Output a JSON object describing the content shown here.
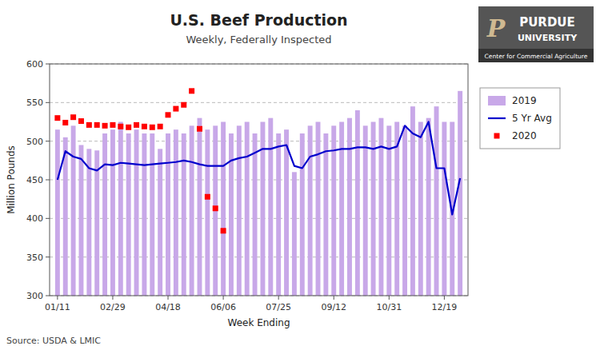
{
  "chart_data": {
    "type": "bar",
    "title": "U.S. Beef Production",
    "subtitle": "Weekly, Federally Inspected",
    "y_label": "Million Pounds",
    "x_label": "Week Ending",
    "source": "Source:  USDA & LMIC",
    "annotations": [
      "P",
      "PURDUE",
      "UNIVERSITY",
      "Center for Commercial Agriculture"
    ],
    "categories": [
      "01/11",
      null,
      null,
      null,
      null,
      null,
      null,
      "02/29",
      null,
      null,
      null,
      null,
      null,
      null,
      "04/18",
      null,
      null,
      null,
      null,
      null,
      null,
      "06/06",
      null,
      null,
      null,
      null,
      null,
      null,
      "07/25",
      null,
      null,
      null,
      null,
      null,
      null,
      "09/12",
      null,
      null,
      null,
      null,
      null,
      null,
      "10/31",
      null,
      null,
      null,
      null,
      null,
      null,
      "12/19",
      null,
      null
    ],
    "series": [
      {
        "name": "2019",
        "type": "bar",
        "color": "#C8A8E8",
        "values": [
          515,
          505,
          520,
          495,
          490,
          488,
          510,
          515,
          525,
          510,
          515,
          510,
          510,
          490,
          510,
          515,
          510,
          520,
          530,
          515,
          520,
          525,
          510,
          520,
          525,
          510,
          525,
          530,
          510,
          515,
          460,
          510,
          520,
          525,
          510,
          520,
          525,
          530,
          540,
          520,
          525,
          530,
          520,
          525,
          520,
          545,
          525,
          530,
          545,
          525,
          525,
          565
        ]
      },
      {
        "name": "5 Yr Avg",
        "type": "line",
        "color": "#0000CC",
        "line_style": "solid",
        "values": [
          450,
          487,
          480,
          477,
          465,
          462,
          470,
          469,
          472,
          471,
          470,
          469,
          470,
          471,
          472,
          473,
          475,
          473,
          470,
          468,
          468,
          468,
          475,
          478,
          480,
          485,
          490,
          490,
          493,
          495,
          468,
          465,
          480,
          483,
          487,
          488,
          490,
          490,
          492,
          492,
          490,
          493,
          490,
          493,
          520,
          510,
          505,
          525,
          465,
          465,
          405,
          452
        ]
      },
      {
        "name": "2020",
        "type": "scatter",
        "color": "#FF0000",
        "marker": "square",
        "values": [
          530,
          524,
          531,
          526,
          521,
          521,
          520,
          521,
          519,
          518,
          521,
          519,
          518,
          519,
          534,
          542,
          547,
          565,
          516,
          428,
          413,
          384,
          null,
          null,
          null,
          null,
          null,
          null,
          null,
          null,
          null,
          null,
          null,
          null,
          null,
          null,
          null,
          null,
          null,
          null,
          null,
          null,
          null,
          null,
          null,
          null,
          null,
          null,
          null,
          null,
          null,
          null
        ]
      }
    ],
    "ylim": [
      300,
      600
    ],
    "yticks": [
      300,
      350,
      400,
      450,
      500,
      550,
      600
    ],
    "grid": true,
    "legend": "right"
  }
}
